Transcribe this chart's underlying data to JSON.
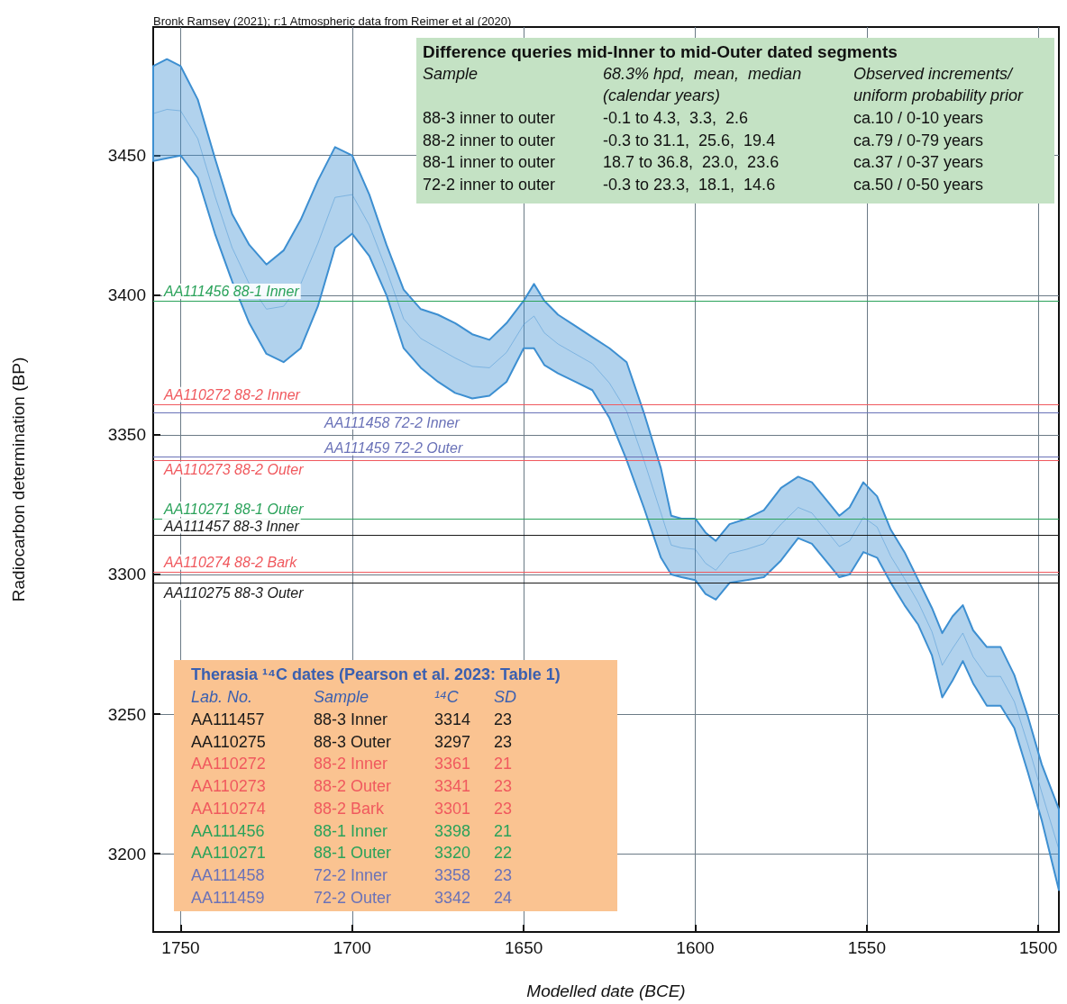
{
  "chart_data": {
    "type": "line",
    "xlabel": "Modelled date (BCE)",
    "ylabel": "Radiocarbon determination (BP)",
    "xlim": [
      1758,
      1494
    ],
    "xticks": [
      1750,
      1700,
      1650,
      1600,
      1550,
      1500
    ],
    "ylim": [
      3172,
      3496
    ],
    "yticks": [
      3200,
      3250,
      3300,
      3350,
      3400,
      3450
    ],
    "grid": true,
    "x": [
      1758,
      1754,
      1750,
      1745,
      1740,
      1735,
      1730,
      1725,
      1720,
      1715,
      1710,
      1705,
      1700,
      1695,
      1690,
      1685,
      1680,
      1675,
      1670,
      1665,
      1660,
      1655,
      1650,
      1647,
      1644,
      1640,
      1635,
      1630,
      1625,
      1620,
      1615,
      1610,
      1607,
      1604,
      1600,
      1597,
      1594,
      1590,
      1585,
      1580,
      1575,
      1570,
      1566,
      1562,
      1558,
      1555,
      1551,
      1547,
      1543,
      1539,
      1535,
      1531,
      1528,
      1525,
      1522,
      1519,
      1515,
      1511,
      1507,
      1503,
      1499,
      1494
    ],
    "series": [
      {
        "color": "#3d8fd1",
        "values": [
          3465,
          3466.5,
          3466,
          3456,
          3435.5,
          3417,
          3404,
          3395,
          3396,
          3404,
          3418.5,
          3435,
          3436,
          3425,
          3409,
          3391.5,
          3384.5,
          3381,
          3377.5,
          3374.5,
          3374,
          3379.5,
          3389.5,
          3392.5,
          3386.5,
          3382.5,
          3379,
          3375.5,
          3368.5,
          3358.5,
          3341,
          3322,
          3310.5,
          3309.5,
          3309,
          3304,
          3301.5,
          3307.5,
          3309,
          3311,
          3318,
          3324,
          3322,
          3316,
          3310,
          3312,
          3320.5,
          3317,
          3306.5,
          3298.5,
          3290,
          3279.5,
          3267.5,
          3273.5,
          3279,
          3270.5,
          3263.5,
          3263.5,
          3254.5,
          3239,
          3222,
          3201.5
        ],
        "upper": [
          3482,
          3484.5,
          3482,
          3470,
          3449,
          3429,
          3418,
          3411,
          3416,
          3427,
          3441,
          3453,
          3450,
          3436,
          3418,
          3402,
          3395,
          3393,
          3390,
          3386,
          3384,
          3390,
          3398,
          3404,
          3398,
          3393,
          3389,
          3385,
          3381,
          3376,
          3358,
          3338,
          3321,
          3320,
          3320,
          3315,
          3312,
          3318,
          3320,
          3323,
          3331,
          3335,
          3333,
          3327,
          3321,
          3324,
          3333,
          3328,
          3316,
          3308,
          3298,
          3288,
          3279,
          3285,
          3289,
          3280,
          3274,
          3274,
          3264,
          3249,
          3232,
          3216
        ],
        "lower": [
          3448,
          3449,
          3450,
          3442,
          3422,
          3405,
          3390,
          3379,
          3376,
          3381,
          3396,
          3417,
          3422,
          3414,
          3400,
          3381,
          3374,
          3369,
          3365,
          3363,
          3364,
          3369,
          3381,
          3381,
          3375,
          3372,
          3369,
          3366,
          3356,
          3341,
          3324,
          3306,
          3300,
          3299,
          3298,
          3293,
          3291,
          3297,
          3298,
          3299,
          3305,
          3313,
          3311,
          3305,
          3299,
          3300,
          3308,
          3306,
          3297,
          3289,
          3282,
          3271,
          3256,
          3262,
          3269,
          3261,
          3253,
          3253,
          3245,
          3229,
          3212,
          3187
        ]
      }
    ],
    "ref_lines": [
      {
        "axis": "y",
        "value": 3314,
        "label": "AA111457 88-3 Inner",
        "color": "#1a1a1a"
      },
      {
        "axis": "y",
        "value": 3297,
        "label": "AA110275 88-3 Outer",
        "color": "#1a1a1a"
      },
      {
        "axis": "y",
        "value": 3361,
        "label": "AA110272 88-2 Inner",
        "color": "#f0595e"
      },
      {
        "axis": "y",
        "value": 3341,
        "label": "AA110273 88-2 Outer",
        "color": "#f0595e"
      },
      {
        "axis": "y",
        "value": 3301,
        "label": "AA110274 88-2 Bark",
        "color": "#f0595e"
      },
      {
        "axis": "y",
        "value": 3398,
        "label": "AA111456 88-1 Inner",
        "color": "#2aa25a"
      },
      {
        "axis": "y",
        "value": 3320,
        "label": "AA110271 88-1 Outer",
        "color": "#2aa25a"
      },
      {
        "axis": "y",
        "value": 3358,
        "label": "AA111458 72-2 Inner",
        "color": "#6a72b8"
      },
      {
        "axis": "y",
        "value": 3342,
        "label": "AA111459 72-2 Outer",
        "color": "#6a72b8"
      }
    ],
    "annotations": [
      "Bronk Ramsey (2021); r:1 Atmospheric data from Reimer et al (2020)",
      "Difference queries mid-Inner to mid-Outer dated segments",
      "Sample",
      "68.3% hpd,  mean,  median\n(calendar years)",
      "Observed increments/\nuniform probability prior",
      "88-3 inner to outer",
      "-0.1 to 4.3,  3.3,  2.6",
      "ca.10 / 0-10 years",
      "88-2 inner to outer",
      "-0.3 to 31.1,  25.6,  19.4",
      "ca.79 / 0-79 years",
      "88-1 inner to outer",
      "18.7 to 36.8,  23.0,  23.6",
      "ca.37 / 0-37 years",
      "72-2 inner to outer",
      "-0.3 to 23.3,  18.1,  14.6",
      "ca.50 / 0-50 years",
      "Therasia ¹⁴C dates (Pearson et al. 2023: Table 1)",
      "Lab. No.",
      "Sample",
      "¹⁴C",
      "SD",
      "AA111457",
      "88-3 Inner",
      "3314",
      "23",
      "AA110275",
      "88-3 Outer",
      "3297",
      "23",
      "AA110272",
      "88-2 Inner",
      "3361",
      "21",
      "AA110273",
      "88-2 Outer",
      "3341",
      "23",
      "AA110274",
      "88-2 Bark",
      "3301",
      "23",
      "AA111456",
      "88-1 Inner",
      "3398",
      "21",
      "AA110271",
      "88-1 Outer",
      "3320",
      "22",
      "AA111458",
      "72-2 Inner",
      "3358",
      "23",
      "AA111459",
      "72-2 Outer",
      "3342",
      "24"
    ]
  }
}
